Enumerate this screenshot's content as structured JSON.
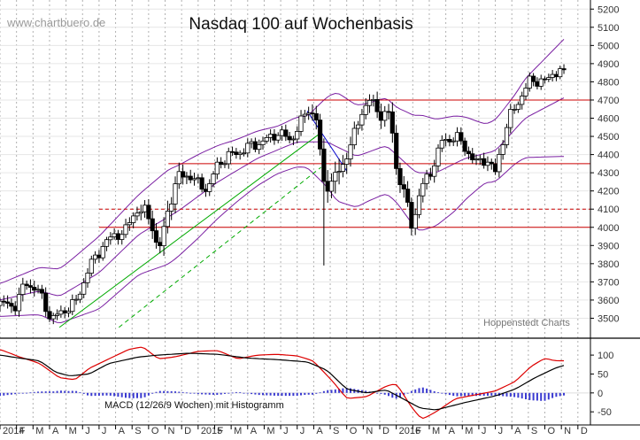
{
  "chart_data": {
    "type": "candlestick",
    "title": "Nasdaq 100 auf Wochenbasis",
    "watermark": "www.chartbuero.de",
    "credit": "Hoppenstedt Charts",
    "price_axis": {
      "ylim": [
        3400,
        5250
      ],
      "ticks": [
        3500,
        3600,
        3700,
        3800,
        3900,
        4000,
        4100,
        4200,
        4300,
        4400,
        4500,
        4600,
        4700,
        4800,
        4900,
        5000,
        5100,
        5200
      ]
    },
    "macd_panel": {
      "label": "MACD (12/26/9 Wochen) mit Histogramm",
      "ylim": [
        -80,
        140
      ],
      "ticks": [
        -50,
        0,
        50,
        100
      ],
      "macd_line_color": "#000000",
      "signal_line_color": "#dd0000",
      "histogram_color": "#3a3ad0"
    },
    "x_axis": {
      "labels": [
        "2014",
        "F",
        "M",
        "A",
        "M",
        "J",
        "J",
        "A",
        "S",
        "O",
        "N",
        "D",
        "2015",
        "F",
        "M",
        "A",
        "M",
        "J",
        "J",
        "A",
        "S",
        "O",
        "N",
        "D",
        "2016",
        "F",
        "M",
        "A",
        "M",
        "J",
        "J",
        "A",
        "S",
        "O",
        "N",
        "D"
      ]
    },
    "horizontal_lines": [
      {
        "value": 4700,
        "style": "solid",
        "color": "#cc0000"
      },
      {
        "value": 4350,
        "style": "solid",
        "color": "#cc0000"
      },
      {
        "value": 4100,
        "style": "dashed",
        "color": "#cc0000"
      },
      {
        "value": 4000,
        "style": "solid",
        "color": "#cc0000"
      }
    ],
    "trend_lines": [
      {
        "color": "#00aa00",
        "style": "solid",
        "from": {
          "x": 2014.3,
          "y": 3450
        },
        "to": {
          "x": 2015.62,
          "y": 4520
        }
      },
      {
        "color": "#00aa00",
        "style": "dashed",
        "from": {
          "x": 2014.6,
          "y": 3450
        },
        "to": {
          "x": 2015.62,
          "y": 4330
        }
      },
      {
        "color": "#0000cc",
        "style": "solid",
        "from": {
          "x": 2015.55,
          "y": 4640
        },
        "to": {
          "x": 2015.75,
          "y": 4310
        }
      }
    ],
    "bollinger_color": "#7a1fa2",
    "anchors": {
      "close": [
        [
          2014.0,
          3580
        ],
        [
          2014.08,
          3570
        ],
        [
          2014.13,
          3700
        ],
        [
          2014.2,
          3640
        ],
        [
          2014.26,
          3490
        ],
        [
          2014.33,
          3550
        ],
        [
          2014.38,
          3580
        ],
        [
          2014.45,
          3780
        ],
        [
          2014.52,
          3900
        ],
        [
          2014.58,
          3960
        ],
        [
          2014.63,
          3970
        ],
        [
          2014.68,
          4090
        ],
        [
          2014.73,
          4090
        ],
        [
          2014.77,
          4010
        ],
        [
          2014.8,
          3850
        ],
        [
          2014.85,
          4110
        ],
        [
          2014.9,
          4280
        ],
        [
          2014.95,
          4290
        ],
        [
          2015.0,
          4240
        ],
        [
          2015.05,
          4210
        ],
        [
          2015.1,
          4350
        ],
        [
          2015.15,
          4390
        ],
        [
          2015.2,
          4410
        ],
        [
          2015.27,
          4450
        ],
        [
          2015.33,
          4470
        ],
        [
          2015.4,
          4520
        ],
        [
          2015.47,
          4480
        ],
        [
          2015.52,
          4580
        ],
        [
          2015.56,
          4660
        ],
        [
          2015.6,
          4580
        ],
        [
          2015.63,
          4250
        ],
        [
          2015.66,
          4230
        ],
        [
          2015.72,
          4320
        ],
        [
          2015.78,
          4480
        ],
        [
          2015.83,
          4650
        ],
        [
          2015.87,
          4700
        ],
        [
          2015.92,
          4620
        ],
        [
          2015.97,
          4620
        ],
        [
          2016.0,
          4330
        ],
        [
          2016.05,
          4150
        ],
        [
          2016.08,
          4000
        ],
        [
          2016.12,
          4200
        ],
        [
          2016.18,
          4320
        ],
        [
          2016.23,
          4470
        ],
        [
          2016.3,
          4500
        ],
        [
          2016.36,
          4420
        ],
        [
          2016.4,
          4350
        ],
        [
          2016.45,
          4380
        ],
        [
          2016.5,
          4300
        ],
        [
          2016.53,
          4450
        ],
        [
          2016.57,
          4600
        ],
        [
          2016.62,
          4700
        ],
        [
          2016.67,
          4800
        ],
        [
          2016.72,
          4810
        ],
        [
          2016.76,
          4800
        ],
        [
          2016.8,
          4860
        ],
        [
          2016.83,
          4860
        ],
        [
          2016.86,
          4820
        ]
      ],
      "range": [
        [
          2014.0,
          70
        ],
        [
          2014.13,
          80
        ],
        [
          2014.26,
          60
        ],
        [
          2014.45,
          55
        ],
        [
          2014.6,
          60
        ],
        [
          2014.77,
          90
        ],
        [
          2014.85,
          120
        ],
        [
          2015.0,
          60
        ],
        [
          2015.2,
          55
        ],
        [
          2015.5,
          60
        ],
        [
          2015.63,
          120
        ],
        [
          2015.7,
          150
        ],
        [
          2015.8,
          70
        ],
        [
          2016.0,
          110
        ],
        [
          2016.1,
          80
        ],
        [
          2016.3,
          60
        ],
        [
          2016.5,
          70
        ],
        [
          2016.7,
          50
        ],
        [
          2016.86,
          50
        ]
      ],
      "bb_mid": [
        [
          2014.0,
          3600
        ],
        [
          2014.2,
          3650
        ],
        [
          2014.3,
          3620
        ],
        [
          2014.5,
          3750
        ],
        [
          2014.7,
          3960
        ],
        [
          2014.9,
          4090
        ],
        [
          2015.1,
          4250
        ],
        [
          2015.3,
          4380
        ],
        [
          2015.5,
          4470
        ],
        [
          2015.65,
          4470
        ],
        [
          2015.8,
          4390
        ],
        [
          2015.95,
          4450
        ],
        [
          2016.1,
          4300
        ],
        [
          2016.2,
          4300
        ],
        [
          2016.35,
          4380
        ],
        [
          2016.5,
          4420
        ],
        [
          2016.65,
          4600
        ],
        [
          2016.86,
          4720
        ]
      ],
      "bb_width": [
        [
          2014.0,
          90
        ],
        [
          2014.2,
          130
        ],
        [
          2014.35,
          160
        ],
        [
          2014.5,
          200
        ],
        [
          2014.7,
          220
        ],
        [
          2014.85,
          260
        ],
        [
          2015.0,
          230
        ],
        [
          2015.2,
          170
        ],
        [
          2015.4,
          130
        ],
        [
          2015.55,
          140
        ],
        [
          2015.7,
          300
        ],
        [
          2015.85,
          270
        ],
        [
          2016.0,
          260
        ],
        [
          2016.12,
          320
        ],
        [
          2016.3,
          260
        ],
        [
          2016.45,
          160
        ],
        [
          2016.6,
          190
        ],
        [
          2016.75,
          270
        ],
        [
          2016.86,
          330
        ]
      ],
      "macd": [
        [
          2014.0,
          100
        ],
        [
          2014.1,
          92
        ],
        [
          2014.2,
          85
        ],
        [
          2014.28,
          55
        ],
        [
          2014.35,
          45
        ],
        [
          2014.45,
          50
        ],
        [
          2014.55,
          78
        ],
        [
          2014.7,
          95
        ],
        [
          2014.8,
          100
        ],
        [
          2014.95,
          105
        ],
        [
          2015.1,
          102
        ],
        [
          2015.25,
          92
        ],
        [
          2015.4,
          88
        ],
        [
          2015.55,
          82
        ],
        [
          2015.65,
          60
        ],
        [
          2015.75,
          10
        ],
        [
          2015.85,
          0
        ],
        [
          2015.95,
          8
        ],
        [
          2016.05,
          -20
        ],
        [
          2016.12,
          -40
        ],
        [
          2016.2,
          -45
        ],
        [
          2016.35,
          -25
        ],
        [
          2016.5,
          -8
        ],
        [
          2016.6,
          10
        ],
        [
          2016.7,
          40
        ],
        [
          2016.8,
          65
        ],
        [
          2016.86,
          75
        ]
      ],
      "signal": [
        [
          2014.0,
          115
        ],
        [
          2014.1,
          95
        ],
        [
          2014.2,
          78
        ],
        [
          2014.3,
          40
        ],
        [
          2014.38,
          35
        ],
        [
          2014.45,
          65
        ],
        [
          2014.55,
          90
        ],
        [
          2014.65,
          115
        ],
        [
          2014.72,
          122
        ],
        [
          2014.8,
          90
        ],
        [
          2014.88,
          95
        ],
        [
          2015.0,
          110
        ],
        [
          2015.1,
          112
        ],
        [
          2015.2,
          90
        ],
        [
          2015.3,
          100
        ],
        [
          2015.4,
          102
        ],
        [
          2015.5,
          98
        ],
        [
          2015.58,
          85
        ],
        [
          2015.68,
          30
        ],
        [
          2015.75,
          -15
        ],
        [
          2015.85,
          -10
        ],
        [
          2015.95,
          18
        ],
        [
          2016.0,
          25
        ],
        [
          2016.08,
          -40
        ],
        [
          2016.13,
          -70
        ],
        [
          2016.2,
          -50
        ],
        [
          2016.3,
          -15
        ],
        [
          2016.4,
          -5
        ],
        [
          2016.5,
          5
        ],
        [
          2016.6,
          30
        ],
        [
          2016.68,
          70
        ],
        [
          2016.75,
          92
        ],
        [
          2016.8,
          85
        ],
        [
          2016.86,
          85
        ]
      ]
    }
  }
}
